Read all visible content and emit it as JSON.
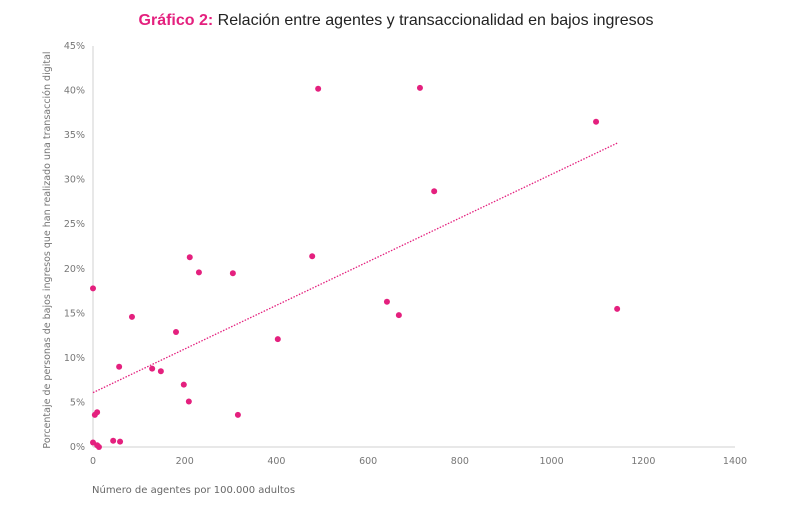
{
  "chart_data": {
    "type": "scatter",
    "title_prefix": "Gráfico 2:",
    "title": "Relación entre agentes y transaccionalidad en bajos ingresos",
    "xlabel": "Número de agentes por 100.000 adultos",
    "ylabel": "Porcentaje de personas de bajos ingresos que han realizado una transacción digital",
    "xlim": [
      0,
      1400
    ],
    "ylim": [
      0,
      45
    ],
    "xticks": [
      0,
      200,
      400,
      600,
      800,
      1000,
      1200,
      1400
    ],
    "yticks": [
      0,
      5,
      10,
      15,
      20,
      25,
      30,
      35,
      40,
      45
    ],
    "ytick_labels": [
      "0%",
      "5%",
      "10%",
      "15%",
      "20%",
      "25%",
      "30%",
      "35%",
      "40%",
      "45%"
    ],
    "grid": false,
    "color": "#e4207e",
    "points": [
      [
        0,
        17.8
      ],
      [
        0,
        0.5
      ],
      [
        4,
        3.6
      ],
      [
        9,
        3.9
      ],
      [
        9,
        0.2
      ],
      [
        13,
        0
      ],
      [
        44,
        0.7
      ],
      [
        59,
        0.6
      ],
      [
        57,
        9.0
      ],
      [
        85,
        14.6
      ],
      [
        129,
        8.8
      ],
      [
        148,
        8.5
      ],
      [
        181,
        12.9
      ],
      [
        198,
        7.0
      ],
      [
        209,
        5.1
      ],
      [
        211,
        21.3
      ],
      [
        231,
        19.6
      ],
      [
        305,
        19.5
      ],
      [
        316,
        3.6
      ],
      [
        403,
        12.1
      ],
      [
        478,
        21.4
      ],
      [
        491,
        40.2
      ],
      [
        641,
        16.3
      ],
      [
        667,
        14.8
      ],
      [
        713,
        40.3
      ],
      [
        744,
        28.7
      ],
      [
        1097,
        36.5
      ],
      [
        1143,
        15.5
      ]
    ],
    "trendline": {
      "type": "linear",
      "from": [
        0,
        6.1
      ],
      "to": [
        1143,
        34.1
      ],
      "style": "dotted"
    }
  }
}
